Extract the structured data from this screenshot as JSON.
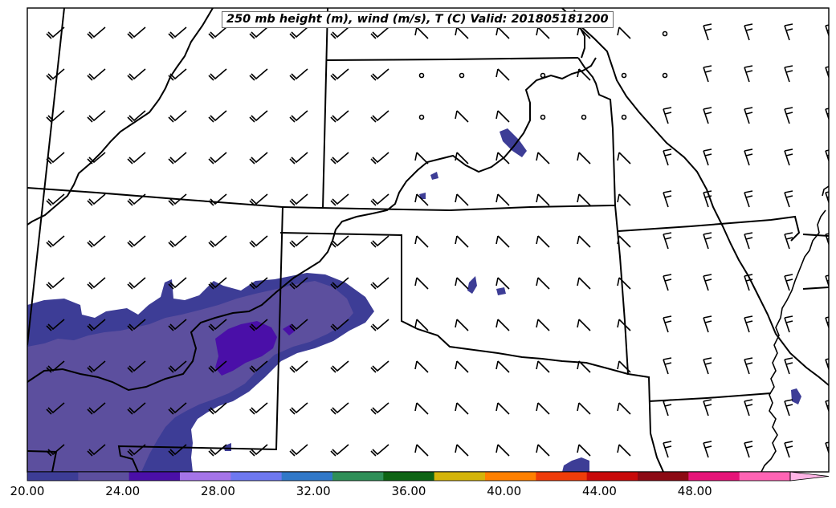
{
  "map": {
    "title": "250 mb height (m), wind (m/s), T (C) Valid: 201805181200"
  },
  "colorbar": {
    "ticks": [
      "20.00",
      "24.00",
      "28.00",
      "32.00",
      "36.00",
      "40.00",
      "44.00",
      "48.00"
    ],
    "tick_values": [
      20,
      24,
      28,
      32,
      36,
      40,
      44,
      48
    ],
    "min": 20,
    "max": 52,
    "extend": "max",
    "colors": [
      "#3d3d96",
      "#5c4f9e",
      "#4a0fa8",
      "#a574e8",
      "#6e78f0",
      "#3178c8",
      "#2f8f58",
      "#0e6414",
      "#d4b40a",
      "#ff8000",
      "#ee3c0a",
      "#c80a0a",
      "#8c0a14",
      "#e61478",
      "#ff64b4",
      "#ffb4e6"
    ]
  }
}
